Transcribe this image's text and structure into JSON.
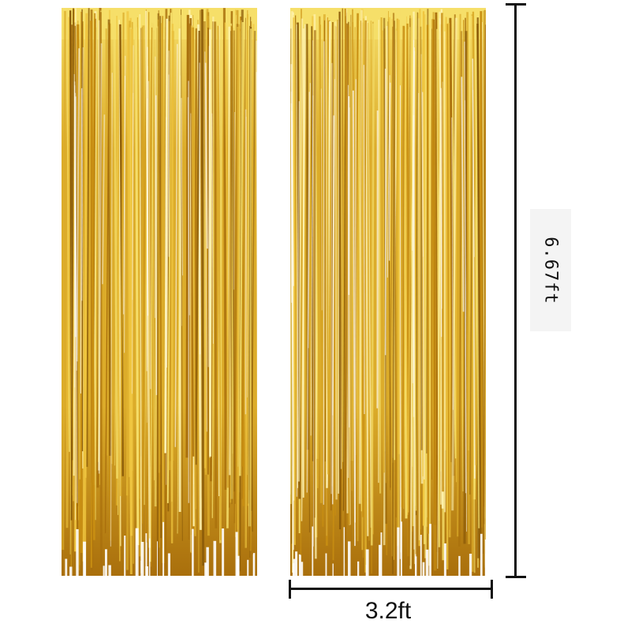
{
  "product_image": {
    "curtains": [
      {
        "name": "left-curtain",
        "color": "#d9a520"
      },
      {
        "name": "right-curtain",
        "color": "#d9a520"
      }
    ],
    "colors": {
      "gold_light": "#f6df6a",
      "gold_mid": "#dcac2a",
      "gold_dark": "#a96f0c",
      "dimension_lines": "#111111"
    }
  },
  "dimensions": {
    "height_label": "6.67ft",
    "width_label": "3.2ft"
  }
}
